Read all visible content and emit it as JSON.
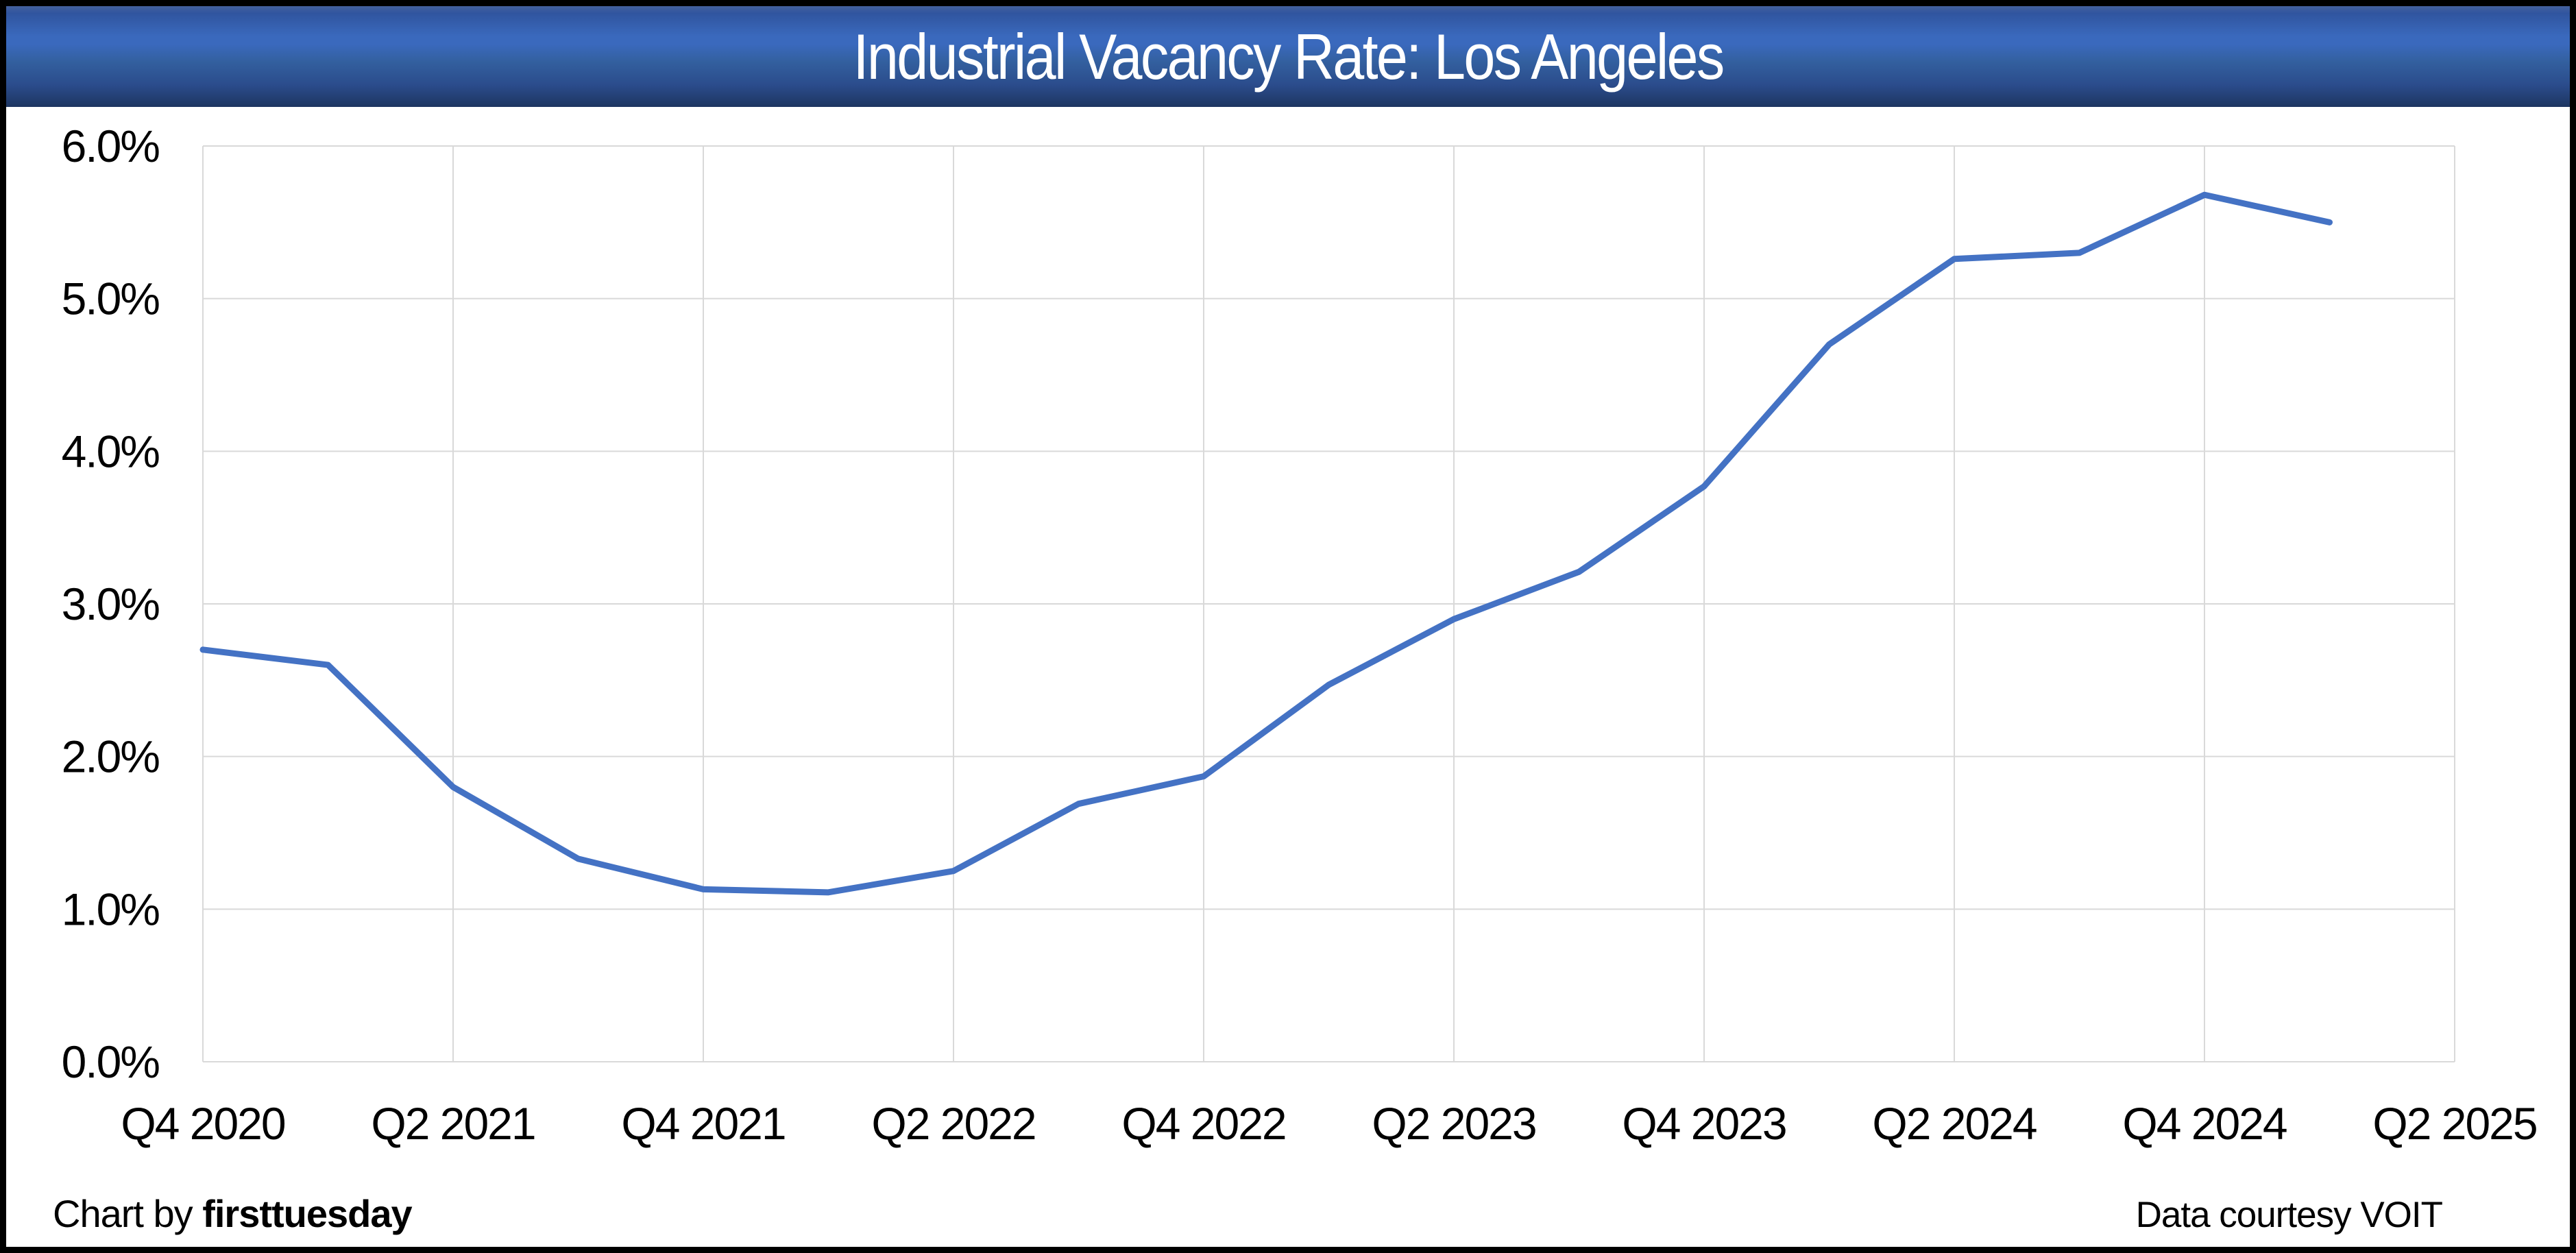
{
  "header": {
    "title": "Industrial Vacancy Rate: Los Angeles"
  },
  "footer": {
    "credit_prefix": "Chart by ",
    "credit_brand": "firsttuesday",
    "data_courtesy": "Data courtesy VOIT"
  },
  "colors": {
    "line": "#4472C4",
    "grid": "#D9D9D9",
    "title_text": "#FFFFFF",
    "titlebar_blue_light": "#3A69BD",
    "titlebar_blue_dark": "#1F3866",
    "frame": "#000000",
    "axis_text": "#000000"
  },
  "chart_data": {
    "type": "line",
    "title": "Industrial Vacancy Rate: Los Angeles",
    "categories": [
      "Q4 2020",
      "Q1 2021",
      "Q2 2021",
      "Q3 2021",
      "Q4 2021",
      "Q1 2022",
      "Q2 2022",
      "Q3 2022",
      "Q4 2022",
      "Q1 2023",
      "Q2 2023",
      "Q3 2023",
      "Q4 2023",
      "Q1 2024",
      "Q2 2024",
      "Q3 2024",
      "Q4 2024",
      "Q1 2025"
    ],
    "values": [
      2.7,
      2.6,
      1.8,
      1.33,
      1.13,
      1.11,
      1.25,
      1.69,
      1.87,
      2.47,
      2.9,
      3.21,
      3.77,
      4.7,
      5.26,
      5.3,
      5.68,
      5.5
    ],
    "series_name": "Industrial vacancy rate",
    "xlabel": "",
    "ylabel": "",
    "ylim": [
      0,
      6
    ],
    "x_quarter_span": 18,
    "x_ticks": [
      0,
      2,
      4,
      6,
      8,
      10,
      12,
      14,
      16,
      18
    ],
    "x_tick_labels": [
      "Q4 2020",
      "Q2 2021",
      "Q4 2021",
      "Q2 2022",
      "Q4 2022",
      "Q2 2023",
      "Q4 2023",
      "Q2 2024",
      "Q4 2024",
      "Q2 2025"
    ],
    "y_ticks": [
      0,
      1,
      2,
      3,
      4,
      5,
      6
    ],
    "y_tick_labels": [
      "0.0%",
      "1.0%",
      "2.0%",
      "3.0%",
      "4.0%",
      "5.0%",
      "6.0%"
    ],
    "grid": true,
    "legend_position": "none",
    "markers": false
  }
}
